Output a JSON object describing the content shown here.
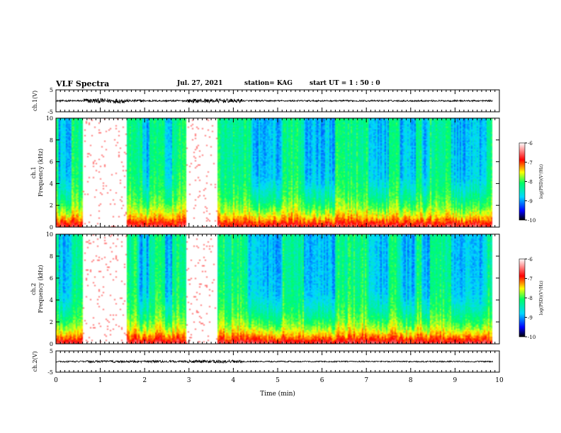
{
  "header": {
    "title": "VLF Spectra",
    "date": "Jul. 27, 2021",
    "station": "station= KAG",
    "start": "start UT =  1 : 50 : 0"
  },
  "colors": {
    "spectrum_scale": [
      "#000000",
      "#0000ff",
      "#00d8ff",
      "#00ff66",
      "#ffff00",
      "#ff0000",
      "#ffffff"
    ],
    "waveform": "#000000"
  },
  "chart_data": [
    {
      "type": "line",
      "panel": "ch1-waveform",
      "ylabel": "ch.1(V)",
      "ylim": [
        -5,
        5
      ],
      "yticks": [
        "5",
        "-5"
      ],
      "xlim": [
        0,
        10
      ],
      "note_trace_level": 0,
      "segments": [
        {
          "x": [
            0,
            0.62
          ],
          "amplitude": 0.4
        },
        {
          "x": [
            0.62,
            1.6
          ],
          "amplitude": 1.1
        },
        {
          "x": [
            1.6,
            2.0
          ],
          "amplitude": 0.6
        },
        {
          "x": [
            2.0,
            2.95
          ],
          "amplitude": 0.4
        },
        {
          "x": [
            2.95,
            4.2
          ],
          "amplitude": 0.9
        },
        {
          "x": [
            4.2,
            9.85
          ],
          "amplitude": 0.35
        }
      ]
    },
    {
      "type": "heatmap",
      "panel": "ch1-spectrogram",
      "ylabel": "ch.1\nFrequency (kHz)",
      "ylim": [
        0,
        10
      ],
      "yticks": [
        "0",
        "2",
        "4",
        "6",
        "8",
        "10"
      ],
      "xlim": [
        0,
        10
      ],
      "colorbar": {
        "label": "log(PSD)(V²/Hz)",
        "range": [
          -10,
          -6
        ],
        "ticks": [
          "-6",
          "-7",
          "-8",
          "-9",
          "-10"
        ]
      },
      "blank_intervals": [
        [
          0.62,
          1.6
        ],
        [
          2.95,
          3.65
        ],
        [
          9.85,
          10
        ]
      ],
      "sparse_intervals": [
        [
          0.62,
          1.6
        ],
        [
          2.95,
          3.65
        ]
      ],
      "quiet_intervals": [
        [
          0.05,
          0.35
        ],
        [
          1.95,
          2.1
        ],
        [
          2.45,
          2.62
        ],
        [
          4.4,
          5.1
        ],
        [
          5.6,
          6.3
        ],
        [
          7.05,
          7.5
        ],
        [
          7.75,
          8.1
        ],
        [
          8.25,
          8.45
        ],
        [
          8.9,
          9.7
        ]
      ]
    },
    {
      "type": "heatmap",
      "panel": "ch2-spectrogram",
      "ylabel": "ch.2\nFrequency (kHz)",
      "ylim": [
        0,
        10
      ],
      "yticks": [
        "0",
        "2",
        "4",
        "6",
        "8",
        "10"
      ],
      "xlim": [
        0,
        10
      ],
      "colorbar": {
        "label": "log(PSD)(V²/Hz)",
        "range": [
          -10,
          -6
        ],
        "ticks": [
          "-6",
          "-7",
          "-8",
          "-9",
          "-10"
        ]
      },
      "blank_intervals": [
        [
          0.62,
          1.6
        ],
        [
          2.95,
          3.65
        ],
        [
          9.85,
          10
        ]
      ],
      "sparse_intervals": [
        [
          0.62,
          1.6
        ],
        [
          2.95,
          3.65
        ]
      ],
      "quiet_intervals": [
        [
          0.05,
          0.35
        ],
        [
          1.85,
          2.1
        ],
        [
          2.45,
          2.62
        ],
        [
          4.3,
          5.1
        ],
        [
          5.6,
          6.3
        ],
        [
          7.05,
          7.5
        ],
        [
          7.75,
          8.1
        ],
        [
          8.25,
          8.45
        ],
        [
          8.9,
          9.7
        ]
      ]
    },
    {
      "type": "line",
      "panel": "ch2-waveform",
      "ylabel": "ch.2(V)",
      "ylim": [
        -5,
        5
      ],
      "yticks": [
        "5",
        "-5"
      ],
      "xlim": [
        0,
        10
      ],
      "xlabel": "Time (min)",
      "xticks": [
        "0",
        "1",
        "2",
        "3",
        "4",
        "5",
        "6",
        "7",
        "8",
        "9",
        "10"
      ],
      "segments": [
        {
          "x": [
            0,
            0.62
          ],
          "amplitude": 0.35
        },
        {
          "x": [
            0.62,
            2.95
          ],
          "amplitude": 0.5
        },
        {
          "x": [
            2.95,
            4.2
          ],
          "amplitude": 0.7
        },
        {
          "x": [
            4.2,
            9.85
          ],
          "amplitude": 0.3
        }
      ]
    }
  ]
}
